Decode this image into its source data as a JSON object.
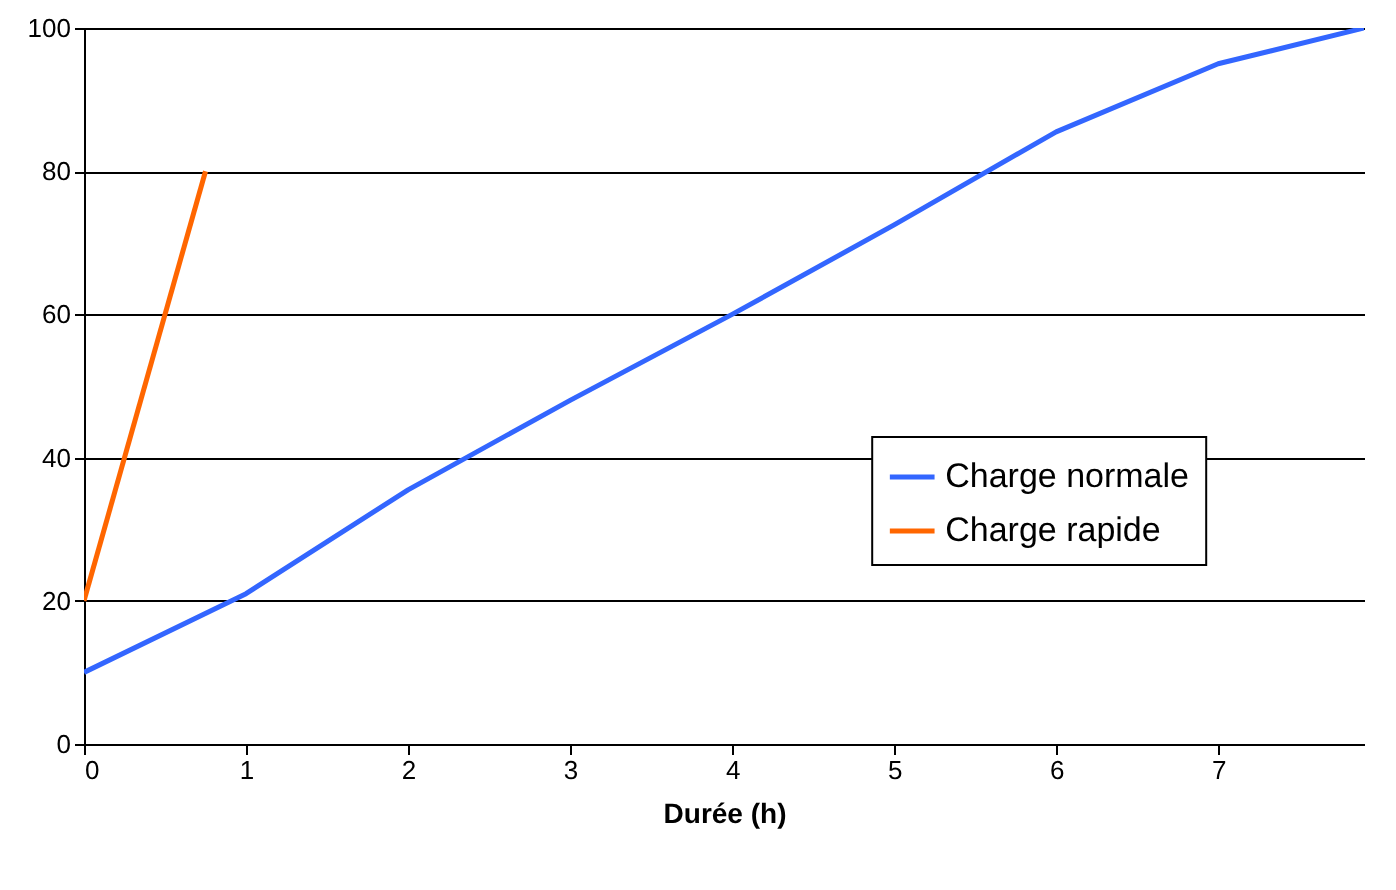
{
  "chart_data": {
    "type": "line",
    "xlabel": "Durée (h)",
    "xlim": [
      0,
      7.9
    ],
    "xticks": [
      0,
      1,
      2,
      3,
      4,
      5,
      6,
      7
    ],
    "ylim": [
      0,
      100
    ],
    "yticks": [
      0,
      20,
      40,
      60,
      80,
      100
    ],
    "grid": "y",
    "legend": "right",
    "marker": "none",
    "line_style": "solid",
    "series": [
      {
        "name": "Charge normale",
        "color": "#3366ff",
        "x": [
          0,
          1,
          2,
          3,
          4,
          5,
          6,
          7,
          7.9
        ],
        "values": [
          10,
          21,
          35.5,
          48,
          60,
          72.5,
          85.5,
          95,
          100
        ]
      },
      {
        "name": "Charge rapide",
        "color": "#ff6600",
        "x": [
          0,
          0.75
        ],
        "values": [
          20,
          80
        ]
      }
    ]
  }
}
